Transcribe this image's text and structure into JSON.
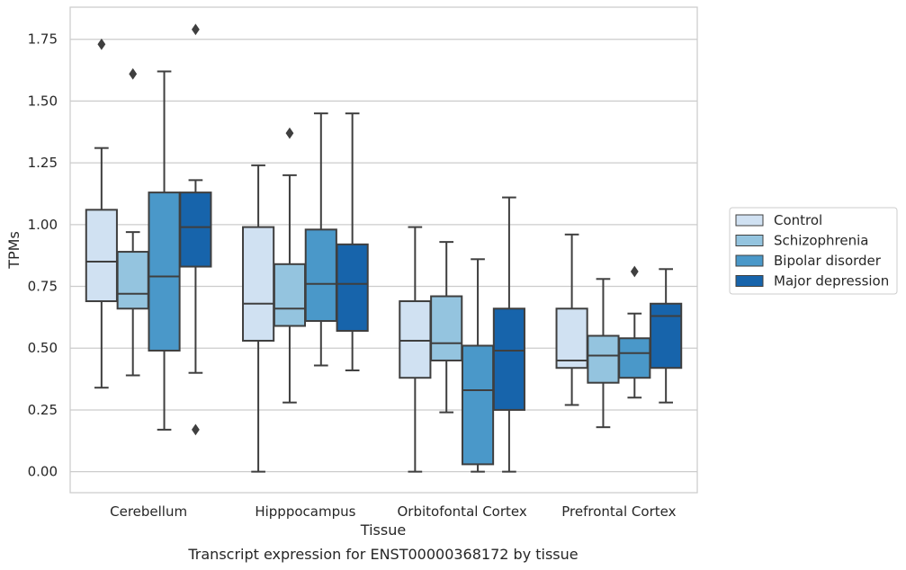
{
  "chart_data": {
    "type": "boxplot",
    "caption": "Transcript expression for ENST00000368172 by tissue",
    "xlabel": "Tissue",
    "ylabel": "TPMs",
    "ylim": [
      -0.085,
      1.88
    ],
    "yticks": [
      0.0,
      0.25,
      0.5,
      0.75,
      1.0,
      1.25,
      1.5,
      1.75
    ],
    "ytick_labels": [
      "0.00",
      "0.25",
      "0.50",
      "0.75",
      "1.00",
      "1.25",
      "1.50",
      "1.75"
    ],
    "grid": "horizontal",
    "legend_position": "outside-right",
    "categories": [
      "Cerebellum",
      "Hipppocampus",
      "Orbitofontal Cortex",
      "Prefrontal Cortex"
    ],
    "series": [
      {
        "name": "Control",
        "color": "#d0e1f2",
        "boxes": [
          {
            "whisker_low": 0.34,
            "q1": 0.69,
            "median": 0.85,
            "q3": 1.06,
            "whisker_high": 1.31,
            "outliers": [
              1.73
            ]
          },
          {
            "whisker_low": 0.0,
            "q1": 0.53,
            "median": 0.68,
            "q3": 0.99,
            "whisker_high": 1.24,
            "outliers": []
          },
          {
            "whisker_low": 0.0,
            "q1": 0.38,
            "median": 0.53,
            "q3": 0.69,
            "whisker_high": 0.99,
            "outliers": []
          },
          {
            "whisker_low": 0.27,
            "q1": 0.42,
            "median": 0.45,
            "q3": 0.66,
            "whisker_high": 0.96,
            "outliers": []
          }
        ]
      },
      {
        "name": "Schizophrenia",
        "color": "#94c4df",
        "boxes": [
          {
            "whisker_low": 0.39,
            "q1": 0.66,
            "median": 0.72,
            "q3": 0.89,
            "whisker_high": 0.97,
            "outliers": [
              1.61
            ]
          },
          {
            "whisker_low": 0.28,
            "q1": 0.59,
            "median": 0.66,
            "q3": 0.84,
            "whisker_high": 1.2,
            "outliers": [
              1.37
            ]
          },
          {
            "whisker_low": 0.24,
            "q1": 0.45,
            "median": 0.52,
            "q3": 0.71,
            "whisker_high": 0.93,
            "outliers": []
          },
          {
            "whisker_low": 0.18,
            "q1": 0.36,
            "median": 0.47,
            "q3": 0.55,
            "whisker_high": 0.78,
            "outliers": []
          }
        ]
      },
      {
        "name": "Bipolar disorder",
        "color": "#4a98c9",
        "boxes": [
          {
            "whisker_low": 0.17,
            "q1": 0.49,
            "median": 0.79,
            "q3": 1.13,
            "whisker_high": 1.62,
            "outliers": []
          },
          {
            "whisker_low": 0.43,
            "q1": 0.61,
            "median": 0.76,
            "q3": 0.98,
            "whisker_high": 1.45,
            "outliers": []
          },
          {
            "whisker_low": 0.0,
            "q1": 0.03,
            "median": 0.33,
            "q3": 0.51,
            "whisker_high": 0.86,
            "outliers": []
          },
          {
            "whisker_low": 0.3,
            "q1": 0.38,
            "median": 0.48,
            "q3": 0.54,
            "whisker_high": 0.64,
            "outliers": [
              0.81
            ]
          }
        ]
      },
      {
        "name": "Major depression",
        "color": "#1764ab",
        "boxes": [
          {
            "whisker_low": 0.4,
            "q1": 0.83,
            "median": 0.99,
            "q3": 1.13,
            "whisker_high": 1.18,
            "outliers": [
              1.79,
              0.17
            ]
          },
          {
            "whisker_low": 0.41,
            "q1": 0.57,
            "median": 0.76,
            "q3": 0.92,
            "whisker_high": 1.45,
            "outliers": []
          },
          {
            "whisker_low": 0.0,
            "q1": 0.25,
            "median": 0.49,
            "q3": 0.66,
            "whisker_high": 1.11,
            "outliers": []
          },
          {
            "whisker_low": 0.28,
            "q1": 0.42,
            "median": 0.63,
            "q3": 0.68,
            "whisker_high": 0.82,
            "outliers": []
          }
        ]
      }
    ]
  }
}
